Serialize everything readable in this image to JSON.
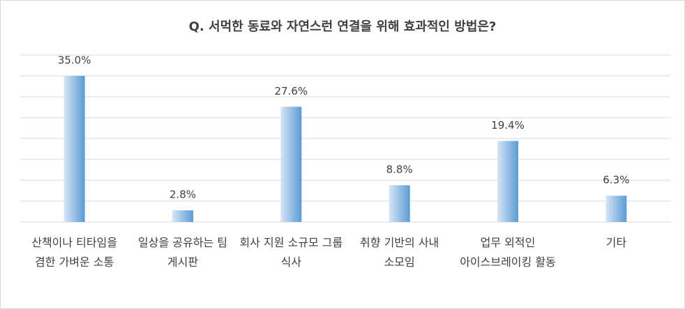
{
  "chart_data": {
    "type": "bar",
    "title": "Q. 서먹한 동료와 자연스런 연결을 위해 효과적인 방법은?",
    "categories": [
      "산책이나 티타임을 겸한 가벼운 소통",
      "일상을 공유하는 팀 게시판",
      "회사 지원 소규모 그룹 식사",
      "취향 기반의 사내 소모임",
      "업무 외적인 아이스브레이킹 활동",
      "기타"
    ],
    "values": [
      35.0,
      2.8,
      27.6,
      8.8,
      19.4,
      6.3
    ],
    "value_labels": [
      "35.0%",
      "2.8%",
      "27.6%",
      "8.8%",
      "19.4%",
      "6.3%"
    ],
    "color": "#5b9bd5",
    "ylim": [
      0,
      40
    ],
    "yticks": [
      0,
      5,
      10,
      15,
      20,
      25,
      30,
      35,
      40
    ],
    "grid": true
  }
}
